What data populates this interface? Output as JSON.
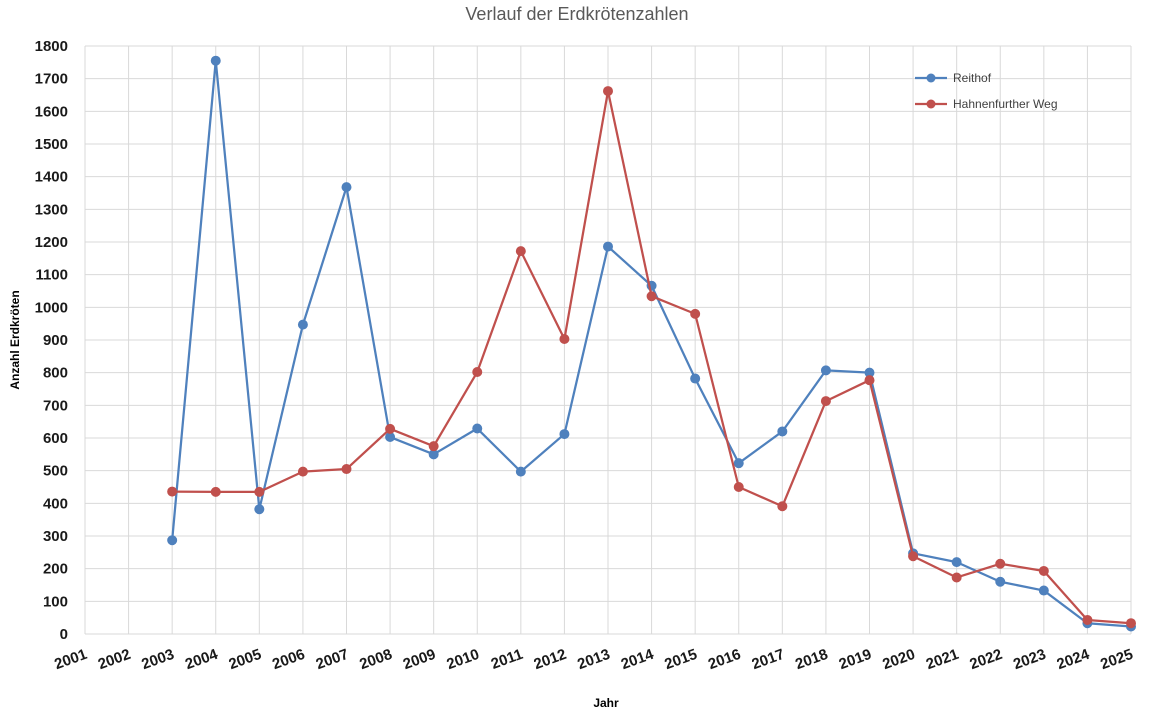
{
  "chart_data": {
    "type": "line",
    "title": "Verlauf der Erdkrötenzahlen",
    "xlabel": "Jahr",
    "ylabel": "Anzahl Erdkröten",
    "categories": [
      "2001",
      "2002",
      "2003",
      "2004",
      "2005",
      "2006",
      "2007",
      "2008",
      "2009",
      "2010",
      "2011",
      "2012",
      "2013",
      "2014",
      "2015",
      "2016",
      "2017",
      "2018",
      "2019",
      "2020",
      "2021",
      "2022",
      "2023",
      "2024",
      "2025"
    ],
    "ylim": [
      0,
      1800
    ],
    "yticks": [
      0,
      100,
      200,
      300,
      400,
      500,
      600,
      700,
      800,
      900,
      1000,
      1100,
      1200,
      1300,
      1400,
      1500,
      1600,
      1700,
      1800
    ],
    "grid": true,
    "legend_position": "top-right",
    "series": [
      {
        "name": "Reithof",
        "color": "#4f81bd",
        "values": [
          null,
          null,
          287,
          1755,
          382,
          947,
          1368,
          603,
          550,
          629,
          497,
          612,
          1186,
          1066,
          782,
          523,
          620,
          807,
          800,
          247,
          220,
          160,
          133,
          33,
          23
        ]
      },
      {
        "name": "Hahnenfurther Weg",
        "color": "#c0504d",
        "values": [
          null,
          null,
          436,
          435,
          435,
          497,
          505,
          628,
          575,
          802,
          1172,
          903,
          1662,
          1034,
          980,
          450,
          391,
          713,
          777,
          238,
          173,
          215,
          193,
          43,
          33
        ]
      }
    ]
  }
}
